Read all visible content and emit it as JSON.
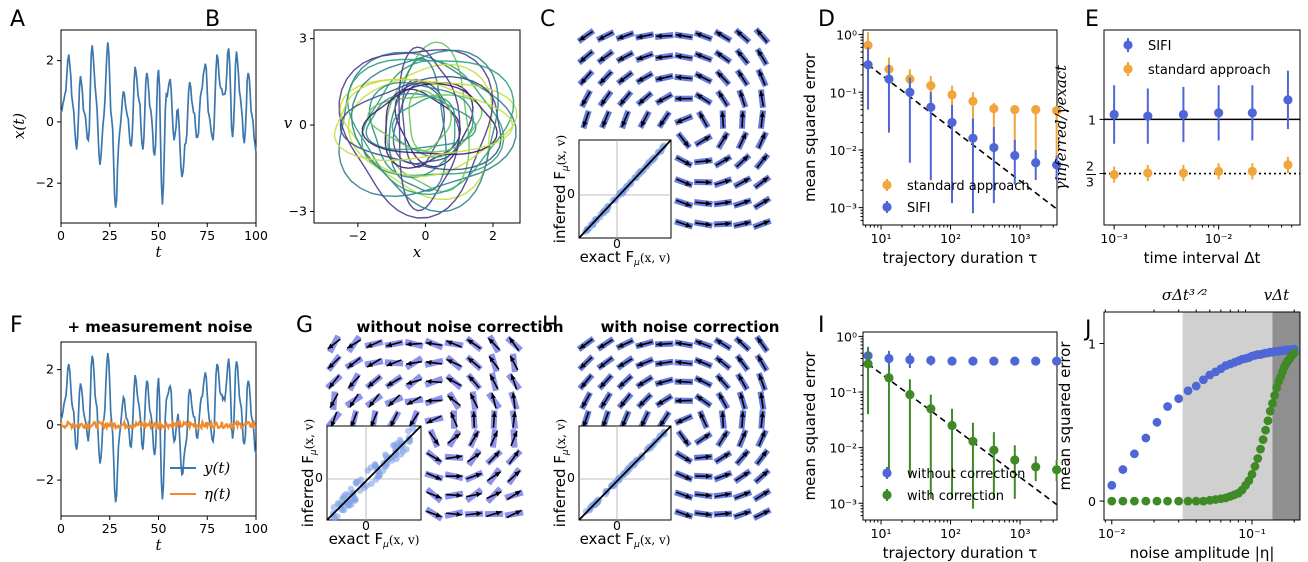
{
  "colors": {
    "blue": "#4e66d6",
    "orange": "#f0a63a",
    "green": "#3f8a26",
    "trace": "#3b77ad",
    "noise": "#f08a2e",
    "arrow": "#000000",
    "arrow_inferred": "#7a80ea",
    "scatter": "#7ea2e8"
  },
  "panels": {
    "A": {
      "label": "A",
      "xlabel": "t",
      "ylabel": "x(t)",
      "xticks": [
        "0",
        "25",
        "50",
        "75",
        "100"
      ],
      "yticks": [
        "2",
        "0",
        "−2"
      ]
    },
    "B": {
      "label": "B",
      "xlabel": "x",
      "ylabel": "v",
      "xticks": [
        "−2",
        "0",
        "2"
      ],
      "yticks": [
        "3",
        "0",
        "−3"
      ]
    },
    "C": {
      "label": "C",
      "inset_ylabel": "inferred F",
      "inset_xlabel": "exact F",
      "inset_sub": "μ",
      "inset_arg": "(x, v)",
      "inset_tick": "0"
    },
    "D": {
      "label": "D",
      "xlabel": "trajectory duration τ",
      "ylabel": "mean squared error",
      "xticks": [
        "10¹",
        "10²",
        "10³"
      ],
      "yticks": [
        "10⁰",
        "10⁻¹",
        "10⁻²",
        "10⁻³"
      ],
      "legend": [
        "standard approach",
        "SIFI"
      ]
    },
    "E": {
      "label": "E",
      "xlabel": "time interval Δt",
      "ylabel": "γinferred/γexact",
      "xticks": [
        "10⁻³",
        "10⁻²"
      ],
      "yticks": [
        "1",
        "2/3"
      ],
      "legend": [
        "SIFI",
        "standard approach"
      ]
    },
    "F": {
      "label": "F",
      "title": "+ measurement noise",
      "xlabel": "t",
      "xticks": [
        "0",
        "25",
        "50",
        "75",
        "100"
      ],
      "yticks": [
        "2",
        "0",
        "−2"
      ],
      "legend": [
        "y(t)",
        "η(t)"
      ]
    },
    "G": {
      "label": "G",
      "title": "without noise correction"
    },
    "H": {
      "label": "H",
      "title": "with noise correction"
    },
    "I": {
      "label": "I",
      "xlabel": "trajectory duration τ",
      "ylabel": "mean squared error",
      "xticks": [
        "10¹",
        "10²",
        "10³"
      ],
      "yticks": [
        "10⁰",
        "10⁻¹",
        "10⁻²",
        "10⁻³"
      ],
      "legend": [
        "without correction",
        "with correction"
      ]
    },
    "J": {
      "label": "J",
      "xlabel": "noise amplitude |η|",
      "ylabel": "mean squared error",
      "xticks": [
        "10⁻²",
        "10⁻¹"
      ],
      "yticks": [
        "1",
        "0"
      ],
      "top_labels": [
        "σΔt³ᐟ²",
        "vΔt"
      ]
    }
  },
  "chart_data": [
    {
      "panel": "A",
      "type": "line",
      "x": [
        0,
        2,
        4,
        6,
        8,
        10,
        12,
        14,
        16,
        18,
        20,
        22,
        24,
        26,
        28,
        30,
        32,
        34,
        36,
        38,
        40,
        42,
        44,
        46,
        48,
        50,
        52,
        54,
        56,
        58,
        60,
        62,
        64,
        66,
        68,
        70,
        72,
        74,
        76,
        78,
        80,
        82,
        84,
        86,
        88,
        90,
        92,
        94,
        96,
        98,
        100
      ],
      "y": [
        0.3,
        0.9,
        2.2,
        0.6,
        -0.9,
        1.5,
        0.3,
        -0.6,
        2.5,
        0.8,
        -1.4,
        0.2,
        2.6,
        0.1,
        -2.8,
        -0.4,
        1.0,
        0.2,
        -0.8,
        1.8,
        0.7,
        -0.9,
        1.6,
        0.4,
        -1.1,
        1.7,
        -2.7,
        0.9,
        1.4,
        -0.6,
        0.4,
        -1.8,
        -0.7,
        1.3,
        0.3,
        -0.5,
        1.0,
        1.9,
        0.2,
        -0.6,
        2.2,
        1.1,
        0.9,
        2.4,
        -0.5,
        2.3,
        0.8,
        -0.7,
        1.6,
        0.2,
        -1.0
      ],
      "xlim": [
        0,
        100
      ],
      "ylim": [
        -3.3,
        3.0
      ]
    },
    {
      "panel": "D",
      "type": "scatter",
      "x": [
        6.5,
        13,
        26,
        52,
        105,
        210,
        420,
        840,
        1680,
        3360
      ],
      "series": [
        {
          "name": "standard approach",
          "values": [
            0.65,
            0.25,
            0.17,
            0.13,
            0.09,
            0.07,
            0.052,
            0.05,
            0.05,
            0.048
          ],
          "err_lo": [
            0.3,
            0.1,
            0.07,
            0.05,
            0.035,
            0.025,
            0.012,
            0.008,
            0.006,
            0.006
          ],
          "err_hi": [
            1.1,
            0.4,
            0.25,
            0.19,
            0.13,
            0.1,
            0.065,
            0.06,
            0.06,
            0.055
          ]
        },
        {
          "name": "SIFI",
          "values": [
            0.3,
            0.17,
            0.1,
            0.055,
            0.03,
            0.016,
            0.011,
            0.008,
            0.006,
            0.0055
          ],
          "err_lo": [
            0.05,
            0.02,
            0.006,
            0.003,
            0.0012,
            0.0008,
            0.0012,
            0.0025,
            0.003,
            0.003
          ],
          "err_hi": [
            0.6,
            0.3,
            0.18,
            0.1,
            0.06,
            0.035,
            0.025,
            0.015,
            0.01,
            0.008
          ]
        }
      ],
      "reference_line": {
        "x": [
          6.5,
          3360
        ],
        "y": [
          0.3,
          0.00095
        ]
      },
      "xscale": "log",
      "yscale": "log",
      "xlim": [
        5.5,
        3400
      ],
      "ylim": [
        0.0005,
        1.2
      ]
    },
    {
      "panel": "E",
      "type": "scatter",
      "x": [
        0.001,
        0.0021,
        0.0046,
        0.01,
        0.021,
        0.046
      ],
      "series": [
        {
          "name": "SIFI",
          "values": [
            1.03,
            1.02,
            1.03,
            1.04,
            1.04,
            1.12
          ],
          "err": [
            0.18,
            0.17,
            0.17,
            0.17,
            0.17,
            0.18
          ]
        },
        {
          "name": "standard approach",
          "values": [
            0.66,
            0.67,
            0.67,
            0.68,
            0.68,
            0.72
          ],
          "err": [
            0.05,
            0.05,
            0.05,
            0.05,
            0.05,
            0.05
          ]
        }
      ],
      "hlines": [
        1.0,
        0.6667
      ],
      "xscale": "log",
      "xlim": [
        0.0008,
        0.06
      ],
      "ylim": [
        0.35,
        1.55
      ]
    },
    {
      "panel": "F",
      "type": "line",
      "x": [
        0,
        2,
        4,
        6,
        8,
        10,
        12,
        14,
        16,
        18,
        20,
        22,
        24,
        26,
        28,
        30,
        32,
        34,
        36,
        38,
        40,
        42,
        44,
        46,
        48,
        50,
        52,
        54,
        56,
        58,
        60,
        62,
        64,
        66,
        68,
        70,
        72,
        74,
        76,
        78,
        80,
        82,
        84,
        86,
        88,
        90,
        92,
        94,
        96,
        98,
        100
      ],
      "series": [
        {
          "name": "y(t)",
          "values": [
            0.3,
            0.9,
            2.2,
            0.6,
            -0.9,
            1.5,
            0.3,
            -0.6,
            2.5,
            0.8,
            -1.4,
            0.2,
            2.6,
            0.1,
            -2.8,
            -0.4,
            1.0,
            0.2,
            -0.8,
            1.8,
            0.7,
            -0.9,
            1.6,
            0.4,
            -1.1,
            1.7,
            -2.7,
            0.9,
            1.4,
            -0.6,
            0.4,
            -1.8,
            -0.7,
            1.3,
            0.3,
            -0.5,
            1.0,
            1.9,
            0.2,
            -0.6,
            2.2,
            1.1,
            0.9,
            2.4,
            -0.5,
            2.3,
            0.8,
            -0.7,
            1.6,
            0.2,
            -1.0
          ]
        },
        {
          "name": "η(t)",
          "values": [
            0,
            0,
            0,
            0,
            0,
            0,
            0,
            0,
            0,
            0,
            0,
            0,
            0,
            0,
            0,
            0,
            0,
            0,
            0,
            0,
            0,
            0,
            0,
            0,
            0,
            0,
            0,
            0,
            0,
            0,
            0,
            0,
            0,
            0,
            0,
            0,
            0,
            0,
            0,
            0,
            0,
            0,
            0,
            0,
            0,
            0,
            0,
            0,
            0,
            0,
            0
          ]
        }
      ],
      "xlim": [
        0,
        100
      ],
      "ylim": [
        -3.3,
        3.0
      ]
    },
    {
      "panel": "I",
      "type": "scatter",
      "x": [
        6.5,
        13,
        26,
        52,
        105,
        210,
        420,
        840,
        1680,
        3360
      ],
      "series": [
        {
          "name": "without correction",
          "values": [
            0.45,
            0.4,
            0.38,
            0.37,
            0.36,
            0.36,
            0.36,
            0.36,
            0.36,
            0.36
          ],
          "err_lo": [
            0.3,
            0.28,
            0.27,
            0.3,
            0.3,
            0.3,
            0.3,
            0.3,
            0.3,
            0.3
          ],
          "err_hi": [
            0.65,
            0.55,
            0.5,
            0.45,
            0.43,
            0.42,
            0.42,
            0.42,
            0.42,
            0.42
          ]
        },
        {
          "name": "with correction",
          "values": [
            0.32,
            0.18,
            0.09,
            0.05,
            0.025,
            0.013,
            0.009,
            0.006,
            0.0045,
            0.004
          ],
          "err_lo": [
            0.04,
            0.003,
            0.003,
            0.0012,
            0.0012,
            0.0008,
            0.0012,
            0.0012,
            0.0025,
            0.0025
          ],
          "err_hi": [
            0.6,
            0.3,
            0.17,
            0.09,
            0.05,
            0.028,
            0.019,
            0.011,
            0.007,
            0.006
          ]
        }
      ],
      "reference_line": {
        "x": [
          6.5,
          3360
        ],
        "y": [
          0.32,
          0.00095
        ]
      },
      "xscale": "log",
      "yscale": "log",
      "xlim": [
        5.5,
        3400
      ],
      "ylim": [
        0.0005,
        1.2
      ]
    },
    {
      "panel": "J",
      "type": "scatter",
      "x": [
        0.01,
        0.012,
        0.0145,
        0.0175,
        0.021,
        0.025,
        0.03,
        0.035,
        0.04,
        0.045,
        0.05,
        0.055,
        0.06,
        0.065,
        0.07,
        0.075,
        0.08,
        0.085,
        0.09,
        0.095,
        0.1,
        0.105,
        0.11,
        0.115,
        0.12,
        0.125,
        0.13,
        0.135,
        0.14,
        0.145,
        0.15,
        0.155,
        0.16,
        0.165,
        0.17,
        0.175,
        0.18,
        0.185,
        0.19,
        0.195,
        0.2
      ],
      "series": [
        {
          "name": "blue",
          "values": [
            0.1,
            0.2,
            0.3,
            0.4,
            0.5,
            0.6,
            0.65,
            0.7,
            0.73,
            0.77,
            0.8,
            0.82,
            0.84,
            0.86,
            0.87,
            0.88,
            0.89,
            0.9,
            0.905,
            0.91,
            0.92,
            0.925,
            0.93,
            0.93,
            0.935,
            0.94,
            0.94,
            0.945,
            0.945,
            0.95,
            0.95,
            0.95,
            0.955,
            0.955,
            0.955,
            0.96,
            0.96,
            0.96,
            0.96,
            0.96,
            0.965
          ]
        },
        {
          "name": "green",
          "values": [
            0,
            0,
            0,
            0,
            0,
            0,
            0.0,
            0.0,
            0.0,
            0.0,
            0.005,
            0.01,
            0.015,
            0.02,
            0.03,
            0.04,
            0.05,
            0.07,
            0.1,
            0.13,
            0.17,
            0.22,
            0.27,
            0.33,
            0.39,
            0.45,
            0.51,
            0.57,
            0.62,
            0.67,
            0.72,
            0.76,
            0.79,
            0.82,
            0.85,
            0.87,
            0.89,
            0.9,
            0.92,
            0.93,
            0.94
          ]
        }
      ],
      "shaded_from": [
        0.032,
        0.14
      ],
      "xscale": "log",
      "xlim": [
        0.0088,
        0.22
      ],
      "ylim": [
        -0.12,
        1.2
      ]
    }
  ]
}
